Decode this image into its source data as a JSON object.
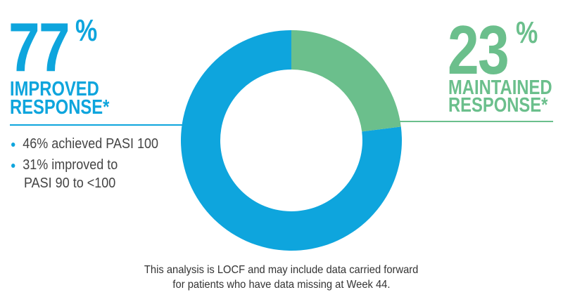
{
  "chart_data": {
    "type": "pie",
    "donut": true,
    "categories": [
      "Improved response",
      "Maintained response"
    ],
    "values": [
      77,
      23
    ],
    "colors": [
      "#0ea5dd",
      "#6bbf8c"
    ]
  },
  "left": {
    "percent": "77",
    "percent_sign": "%",
    "label_line1": "IMPROVED",
    "label_line2": "RESPONSE*",
    "bullets": [
      "46% achieved PASI 100",
      "31% improved to",
      "PASI 90 to <100"
    ]
  },
  "right": {
    "percent": "23",
    "percent_sign": "%",
    "label_line1": "MAINTAINED",
    "label_line2": "RESPONSE*"
  },
  "footnote": {
    "line1": "This analysis is LOCF and may include data carried forward",
    "line2": "for patients who have data missing at Week 44."
  }
}
